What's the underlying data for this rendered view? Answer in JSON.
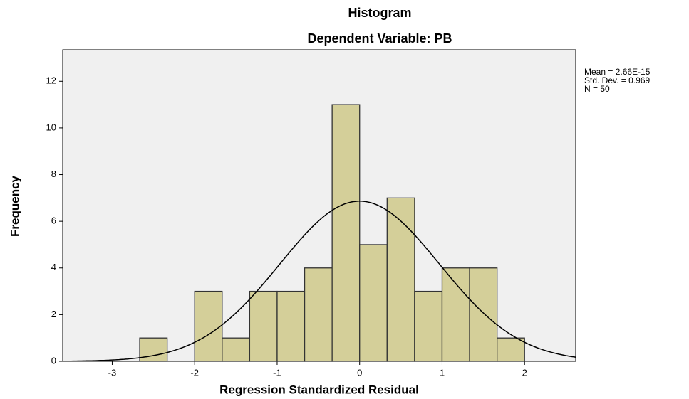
{
  "chart_data": {
    "type": "histogram",
    "title": "Histogram",
    "subtitle": "Dependent Variable: PB",
    "xlabel": "Regression Standardized Residual",
    "ylabel": "Frequency",
    "bins": [
      -2.6667,
      -2.3333,
      -2.0,
      -1.6667,
      -1.3333,
      -1.0,
      -0.6667,
      -0.3333,
      0.0,
      0.3333,
      0.6667,
      1.0,
      1.3333,
      1.6667,
      2.0
    ],
    "values": [
      1,
      0,
      3,
      1,
      3,
      3,
      4,
      11,
      5,
      7,
      3,
      4,
      4,
      1
    ],
    "color": "#d4cf99",
    "xlim": [
      -3.6,
      2.62
    ],
    "ylim": [
      0,
      13.35
    ],
    "xticks": [
      -3,
      -2,
      -1,
      0,
      1,
      2
    ],
    "yticks": [
      0,
      2,
      4,
      6,
      8,
      10,
      12
    ],
    "normal_curve": {
      "mean": 2.66e-15,
      "std": 0.969,
      "n": 50
    },
    "annotations": [
      "Mean = 2.66E-15",
      "Std. Dev. = 0.969",
      "N = 50"
    ]
  }
}
